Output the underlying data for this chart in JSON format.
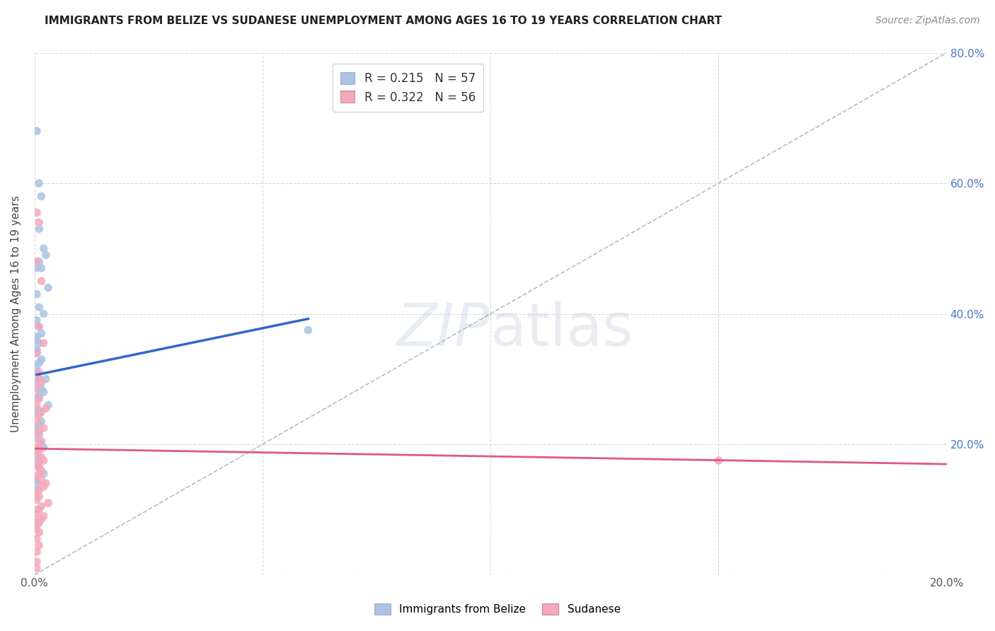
{
  "title": "IMMIGRANTS FROM BELIZE VS SUDANESE UNEMPLOYMENT AMONG AGES 16 TO 19 YEARS CORRELATION CHART",
  "source": "Source: ZipAtlas.com",
  "ylabel": "Unemployment Among Ages 16 to 19 years",
  "series1_R": "0.215",
  "series1_N": "57",
  "series2_R": "0.322",
  "series2_N": "56",
  "series1_color": "#aac4e2",
  "series2_color": "#f4a8bb",
  "trend1_color": "#3366cc",
  "trend2_color": "#e05880",
  "dashed_line_color": "#b0bcd4",
  "xlim": [
    0.0,
    0.2
  ],
  "ylim": [
    0.0,
    0.8
  ],
  "xticks": [
    0.0,
    0.05,
    0.1,
    0.15,
    0.2
  ],
  "yticks": [
    0.0,
    0.2,
    0.4,
    0.6,
    0.8
  ],
  "background_color": "#ffffff",
  "legend_bottom": [
    "Immigrants from Belize",
    "Sudanese"
  ],
  "series1_x": [
    0.0005,
    0.001,
    0.0015,
    0.001,
    0.002,
    0.0025,
    0.001,
    0.0015,
    0.0005,
    0.003,
    0.0005,
    0.001,
    0.002,
    0.0005,
    0.001,
    0.0015,
    0.0005,
    0.0005,
    0.001,
    0.0005,
    0.0005,
    0.0015,
    0.001,
    0.0005,
    0.0005,
    0.0025,
    0.001,
    0.0005,
    0.0015,
    0.002,
    0.001,
    0.0005,
    0.003,
    0.0005,
    0.001,
    0.0005,
    0.0015,
    0.001,
    0.0005,
    0.0005,
    0.001,
    0.0005,
    0.0015,
    0.002,
    0.0005,
    0.0005,
    0.0005,
    0.001,
    0.0005,
    0.001,
    0.002,
    0.0005,
    0.0005,
    0.0005,
    0.0005,
    0.0005,
    0.06
  ],
  "series1_y": [
    0.68,
    0.6,
    0.58,
    0.53,
    0.5,
    0.49,
    0.48,
    0.47,
    0.47,
    0.44,
    0.43,
    0.41,
    0.4,
    0.39,
    0.38,
    0.37,
    0.365,
    0.36,
    0.355,
    0.345,
    0.34,
    0.33,
    0.325,
    0.32,
    0.31,
    0.3,
    0.3,
    0.295,
    0.285,
    0.28,
    0.275,
    0.27,
    0.26,
    0.255,
    0.25,
    0.245,
    0.235,
    0.23,
    0.225,
    0.22,
    0.215,
    0.21,
    0.2,
    0.195,
    0.19,
    0.185,
    0.18,
    0.175,
    0.17,
    0.165,
    0.155,
    0.145,
    0.14,
    0.13,
    0.1,
    0.08,
    0.375
  ],
  "series2_x": [
    0.0005,
    0.001,
    0.0005,
    0.0015,
    0.001,
    0.002,
    0.0005,
    0.001,
    0.0015,
    0.0005,
    0.001,
    0.0005,
    0.0025,
    0.0015,
    0.001,
    0.0005,
    0.002,
    0.001,
    0.0005,
    0.0015,
    0.001,
    0.0005,
    0.001,
    0.0005,
    0.0015,
    0.002,
    0.0005,
    0.001,
    0.0015,
    0.001,
    0.0005,
    0.0015,
    0.0025,
    0.002,
    0.001,
    0.0005,
    0.001,
    0.0005,
    0.003,
    0.0015,
    0.001,
    0.0005,
    0.002,
    0.0015,
    0.001,
    0.0005,
    0.0005,
    0.001,
    0.0005,
    0.001,
    0.0005,
    0.0005,
    0.0005,
    0.001,
    0.0005,
    0.15
  ],
  "series2_y": [
    0.555,
    0.54,
    0.48,
    0.45,
    0.38,
    0.355,
    0.34,
    0.31,
    0.295,
    0.285,
    0.27,
    0.26,
    0.255,
    0.25,
    0.245,
    0.235,
    0.225,
    0.22,
    0.215,
    0.205,
    0.2,
    0.195,
    0.19,
    0.185,
    0.18,
    0.175,
    0.17,
    0.165,
    0.16,
    0.155,
    0.15,
    0.145,
    0.14,
    0.135,
    0.13,
    0.125,
    0.12,
    0.115,
    0.11,
    0.105,
    0.1,
    0.095,
    0.09,
    0.085,
    0.08,
    0.075,
    0.07,
    0.065,
    0.055,
    0.045,
    0.035,
    0.02,
    0.01,
    0.3,
    0.085,
    0.175
  ]
}
